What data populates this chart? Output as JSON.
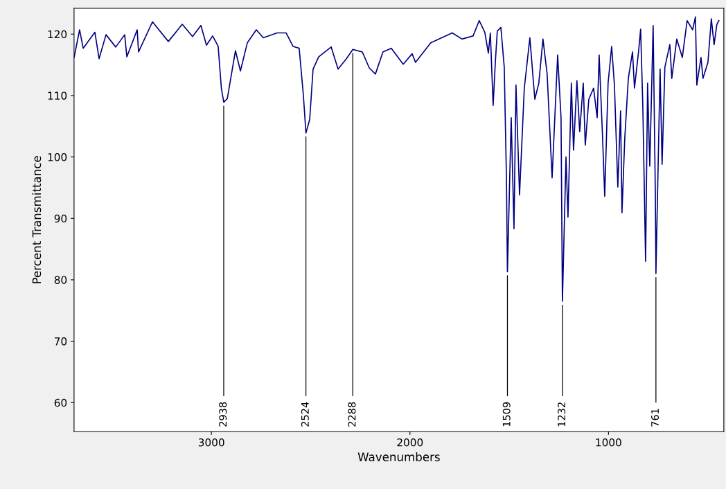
{
  "chart_data": {
    "type": "line",
    "xlabel": "Wavenumbers",
    "ylabel": "Percent Transmittance",
    "xlim": [
      3692,
      419
    ],
    "ylim": [
      55.3,
      124.2
    ],
    "xticks": [
      3000,
      2000,
      1000
    ],
    "yticks": [
      60,
      70,
      80,
      90,
      100,
      110,
      120
    ],
    "grid": false,
    "marker": "none",
    "line_style": "solid",
    "series": [
      {
        "color": "#000080",
        "x": [
          3692,
          3664,
          3646,
          3587,
          3566,
          3531,
          3482,
          3437,
          3426,
          3374,
          3367,
          3297,
          3217,
          3147,
          3095,
          3053,
          3025,
          2994,
          2966,
          2950,
          2938,
          2920,
          2879,
          2854,
          2819,
          2774,
          2739,
          2669,
          2624,
          2589,
          2558,
          2537,
          2524,
          2505,
          2488,
          2460,
          2397,
          2362,
          2320,
          2288,
          2240,
          2205,
          2174,
          2136,
          2094,
          2034,
          1989,
          1972,
          1895,
          1787,
          1738,
          1682,
          1651,
          1623,
          1605,
          1595,
          1581,
          1570,
          1560,
          1542,
          1525,
          1514,
          1509,
          1490,
          1476,
          1466,
          1448,
          1424,
          1396,
          1371,
          1351,
          1330,
          1309,
          1284,
          1256,
          1239,
          1232,
          1214,
          1204,
          1187,
          1176,
          1159,
          1145,
          1127,
          1117,
          1099,
          1075,
          1057,
          1047,
          1030,
          1019,
          1002,
          984,
          970,
          953,
          939,
          932,
          918,
          900,
          879,
          869,
          848,
          838,
          827,
          813,
          803,
          792,
          775,
          764,
          761,
          740,
          730,
          716,
          691,
          681,
          656,
          628,
          604,
          576,
          562,
          555,
          534,
          524,
          499,
          482,
          468,
          454,
          444
        ],
        "values": [
          116.2,
          120.7,
          117.7,
          120.3,
          116.0,
          119.9,
          117.9,
          119.9,
          116.3,
          120.7,
          117.1,
          122.0,
          118.8,
          121.6,
          119.6,
          121.4,
          118.2,
          119.7,
          118.0,
          111.2,
          108.9,
          109.5,
          117.3,
          114.0,
          118.6,
          120.7,
          119.4,
          120.2,
          120.2,
          118.0,
          117.7,
          110.1,
          103.9,
          106.1,
          114.3,
          116.3,
          117.9,
          114.3,
          116.0,
          117.5,
          117.1,
          114.5,
          113.5,
          117.1,
          117.7,
          115.1,
          116.8,
          115.4,
          118.6,
          120.2,
          119.2,
          119.7,
          122.2,
          120.3,
          116.9,
          120.2,
          108.4,
          115.4,
          120.5,
          121.1,
          114.6,
          96.6,
          81.3,
          106.4,
          88.3,
          111.7,
          93.8,
          111.2,
          119.4,
          109.4,
          112.0,
          119.2,
          113.5,
          96.6,
          116.6,
          106.4,
          76.5,
          100.0,
          90.2,
          112.0,
          101.1,
          112.4,
          104.1,
          112.0,
          101.9,
          109.4,
          111.2,
          106.4,
          116.6,
          103.4,
          93.6,
          112.0,
          118.0,
          111.7,
          95.1,
          107.5,
          90.9,
          103.0,
          112.8,
          117.1,
          111.2,
          117.3,
          120.8,
          108.3,
          83.0,
          112.0,
          98.5,
          121.4,
          94.0,
          81.0,
          114.3,
          98.8,
          114.6,
          118.3,
          112.8,
          119.2,
          116.2,
          122.2,
          120.7,
          122.8,
          111.7,
          116.2,
          112.8,
          115.4,
          122.5,
          118.3,
          121.6,
          122.2
        ]
      }
    ],
    "annotations": [
      {
        "text": "2938",
        "x": 2938,
        "y": 108.9
      },
      {
        "text": "2524",
        "x": 2524,
        "y": 103.9
      },
      {
        "text": "2288",
        "x": 2288,
        "y": 117.5
      },
      {
        "text": "1509",
        "x": 1509,
        "y": 81.3
      },
      {
        "text": "1232",
        "x": 1232,
        "y": 76.5
      },
      {
        "text": "761",
        "x": 761,
        "y": 81.0
      }
    ]
  }
}
